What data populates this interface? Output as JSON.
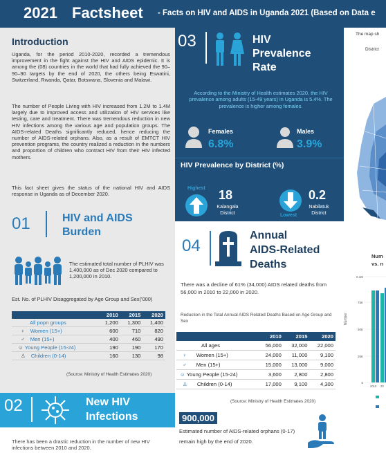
{
  "header": {
    "year": "2021",
    "title": "Factsheet",
    "subtitle": "- Facts on HIV and AIDS in Uganda 2021 (Based on Data e"
  },
  "introduction": {
    "heading": "Introduction",
    "para1": "Uganda, for the period 2010-2020, recorded a tremendous improvement in the fight against the HIV and AIDS epidemic. It is among the (08) countries in the world that had fully achieved the 90–90–90 targets by the end of 2020, the others being Eswatini, Switzerland, Rwanda, Qatar, Botswana, Slovenia and Malawi.",
    "para2": "The number of People Living with HIV increased from 1.2M to 1.4M largely due to improved access and utilization of HIV services like testing, care and treatment. There was tremendous reduction in new HIV infections among the various age and population groups. The AIDS-related Deaths significantly reduced, hence reducing the number of AIDS-related orphans. Also, as a result of EMTCT HIV prevention programs, the country realized a reduction in the numbers and proportion of children who contract HIV from their HIV infected mothers.",
    "para3": "This fact sheet gives the status of the national HIV and AIDS response in Uganda as of December 2020."
  },
  "burden": {
    "number": "01",
    "heading_line1": "HIV and AIDS",
    "heading_line2": "Burden",
    "text": "The estimated total number of PLHIV was 1,400,000 as of Dec 2020 compared to 1,200,000 in 2010.",
    "table_caption": "Est. No. of PLHIV Disaggregated by Age Group and Sex(’000)",
    "columns": [
      "",
      "2010",
      "2015",
      "2020"
    ],
    "rows": [
      {
        "label": "All popn groups",
        "v": [
          "1,200",
          "1,300",
          "1,400"
        ]
      },
      {
        "label": "Women (15+)",
        "v": [
          "600",
          "710",
          "820"
        ]
      },
      {
        "label": "Men (15+)",
        "v": [
          "400",
          "460",
          "490"
        ]
      },
      {
        "label": "Young People (15-24)",
        "v": [
          "190",
          "190",
          "170"
        ]
      },
      {
        "label": "Children (0-14)",
        "v": [
          "160",
          "130",
          "98"
        ]
      }
    ],
    "source": "(Source: Ministry of Health Estimates 2020)"
  },
  "new_infections": {
    "number": "02",
    "heading_line1": "New HIV",
    "heading_line2": "Infections",
    "text": "There has been a drastic reduction in the number of new HIV infections between 2010 and 2020."
  },
  "prevalence": {
    "number": "03",
    "heading_line1": "HIV",
    "heading_line2": "Prevalence",
    "heading_line3": "Rate",
    "note": "According to the Ministry of Health estimates 2020, the HIV prevalence among adults (15-49 years) in Uganda is 5.4%. The prevalence is higher among females.",
    "females_label": "Females",
    "females_value": "6.8%",
    "males_label": "Males",
    "males_value": "3.9%",
    "district_heading": "HIV Prevalence by District (%)",
    "highest_label": "Highest",
    "highest_value": "18",
    "highest_district": "Kalangala District",
    "lowest_label": "Lowest",
    "lowest_value": "0.2",
    "lowest_district": "Nabilatuk District"
  },
  "map": {
    "caption": "The map sh",
    "sub": "District"
  },
  "deaths": {
    "number": "04",
    "heading_line1": "Annual",
    "heading_line2": "AIDS-Related",
    "heading_line3": "Deaths",
    "text": "There was a decline of 61% (34,000) AIDS related deaths from 56,000 in 2010 to 22,000 in 2020.",
    "table_caption": "Reduction in the Total Annual AIDS Related Deaths Based on Age Group and Sex",
    "columns": [
      "",
      "2010",
      "2015",
      "2020"
    ],
    "rows": [
      {
        "label": "All ages",
        "v": [
          "56,000",
          "32,000",
          "22,000"
        ]
      },
      {
        "label": "Women (15+)",
        "v": [
          "24,000",
          "11,000",
          "9,100"
        ]
      },
      {
        "label": "Men (15+)",
        "v": [
          "15,000",
          "13,000",
          "9,000"
        ]
      },
      {
        "label": "Young People (15-24)",
        "v": [
          "3,600",
          "2,800",
          "2,800"
        ]
      },
      {
        "label": "Children (0-14)",
        "v": [
          "17,000",
          "9,100",
          "4,300"
        ]
      }
    ],
    "source": "(Source: Ministry of Health Estimates 2020)",
    "orphans_value": "900,000",
    "orphans_text": "Estimated number of AIDS-related orphans (0-17) remain high by the end of 2020."
  },
  "right_chart": {
    "title_line1": "Num",
    "title_line2": "vs. n",
    "ylabel": "Number",
    "yticks": [
      "0",
      "25K",
      "50K",
      "75K",
      "0.1M"
    ],
    "first_xtick": "2010",
    "second_xtick": "20"
  },
  "colors": {
    "navy": "#1f4e79",
    "blue": "#2a7ab8",
    "cyan": "#2aa4d8",
    "teal": "#1fb5a8",
    "panel": "#e9e9e9"
  }
}
